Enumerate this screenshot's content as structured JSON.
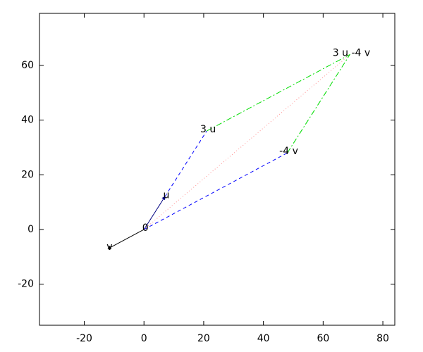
{
  "chart_data": {
    "type": "vector",
    "xlim": [
      -35,
      84
    ],
    "ylim": [
      -35,
      79
    ],
    "xticks": [
      -20,
      0,
      20,
      40,
      60,
      80
    ],
    "yticks": [
      -20,
      0,
      20,
      40,
      60
    ],
    "segments": [
      {
        "x": [
          0,
          7
        ],
        "y": [
          0,
          12
        ],
        "color": "#000080",
        "dash": "solid",
        "arrow": true
      },
      {
        "x": [
          0,
          -12
        ],
        "y": [
          0,
          -7
        ],
        "color": "#000000",
        "dash": "solid",
        "arrow": true
      },
      {
        "x": [
          7,
          21
        ],
        "y": [
          12,
          36
        ],
        "color": "#0000ff",
        "dash": "dashed",
        "arrow": false
      },
      {
        "x": [
          0,
          48
        ],
        "y": [
          0,
          28
        ],
        "color": "#0000ff",
        "dash": "dashed",
        "arrow": false
      },
      {
        "x": [
          21,
          69
        ],
        "y": [
          36,
          64
        ],
        "color": "#00dd00",
        "dash": "dashdot",
        "arrow": false
      },
      {
        "x": [
          48,
          69
        ],
        "y": [
          28,
          64
        ],
        "color": "#00dd00",
        "dash": "dashdot",
        "arrow": false
      },
      {
        "x": [
          0,
          69
        ],
        "y": [
          0,
          64
        ],
        "color": "#ff9090",
        "dash": "dotted",
        "arrow": false
      }
    ],
    "annotations": [
      {
        "text": "u",
        "x": 7,
        "y": 12
      },
      {
        "text": "v",
        "x": -12,
        "y": -7
      },
      {
        "text": "0",
        "x": 0,
        "y": 0
      },
      {
        "text": "3 u",
        "x": 21,
        "y": 36
      },
      {
        "text": "-4 v",
        "x": 48,
        "y": 28
      },
      {
        "text": "3 u -4 v",
        "x": 69,
        "y": 64
      }
    ]
  }
}
